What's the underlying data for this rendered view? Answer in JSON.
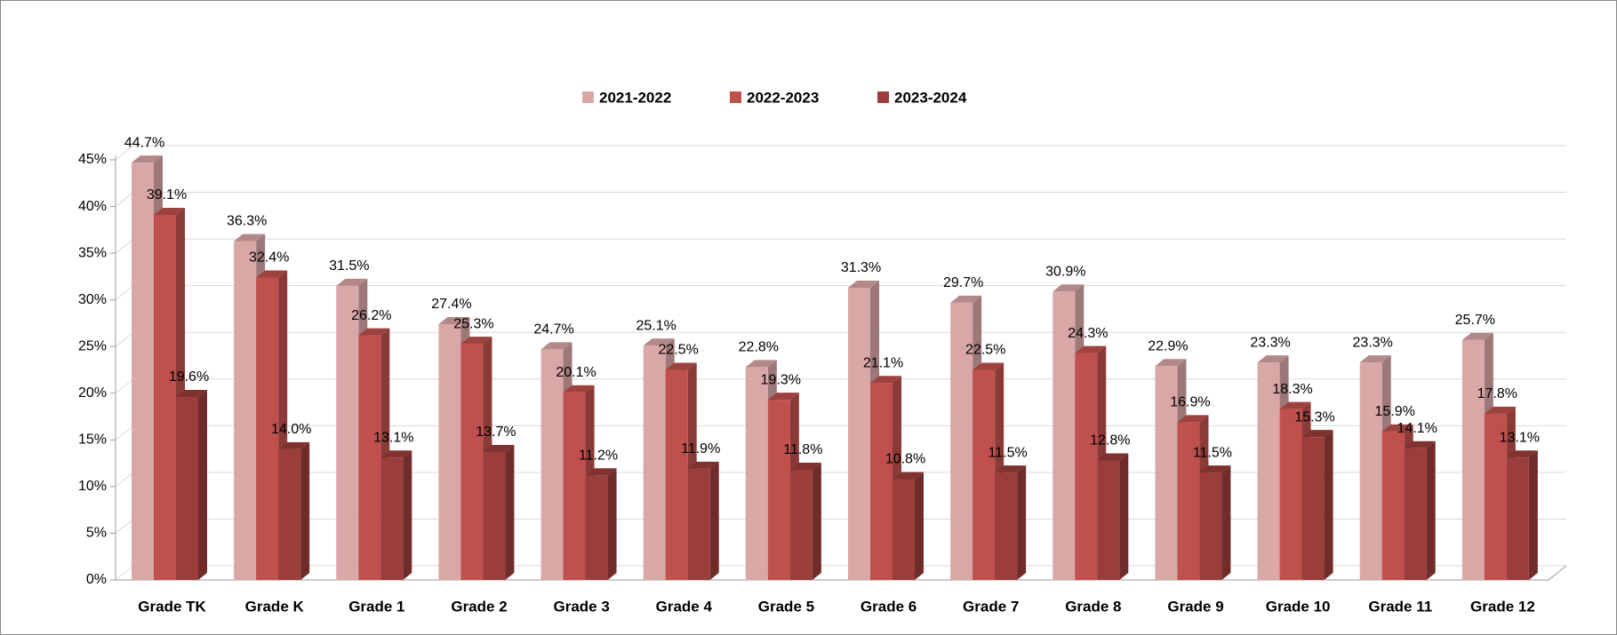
{
  "chart_data": {
    "type": "bar",
    "categories": [
      "Grade TK",
      "Grade K",
      "Grade 1",
      "Grade 2",
      "Grade 3",
      "Grade 4",
      "Grade 5",
      "Grade 6",
      "Grade 7",
      "Grade 8",
      "Grade 9",
      "Grade 10",
      "Grade 11",
      "Grade 12"
    ],
    "series": [
      {
        "name": "2021-2022",
        "color": "#d9a7a6",
        "values": [
          44.7,
          36.3,
          31.5,
          27.4,
          24.7,
          25.1,
          22.8,
          31.3,
          29.7,
          30.9,
          22.9,
          23.3,
          23.3,
          25.7
        ],
        "value_labels": [
          "44.7%",
          "36.3%",
          "31.5%",
          "27.4%",
          "24.7%",
          "25.1%",
          "22.8%",
          "31.3%",
          "29.7%",
          "30.9%",
          "22.9%",
          "23.3%",
          "23.3%",
          "25.7%"
        ]
      },
      {
        "name": "2022-2023",
        "color": "#c0504d",
        "values": [
          39.1,
          32.4,
          26.2,
          25.3,
          20.1,
          22.5,
          19.3,
          21.1,
          22.5,
          24.3,
          16.9,
          18.3,
          15.9,
          17.8
        ],
        "value_labels": [
          "39.1%",
          "32.4%",
          "26.2%",
          "25.3%",
          "20.1%",
          "22.5%",
          "19.3%",
          "21.1%",
          "22.5%",
          "24.3%",
          "16.9%",
          "18.3%",
          "15.9%",
          "17.8%"
        ]
      },
      {
        "name": "2023-2024",
        "color": "#9b3d3b",
        "values": [
          19.6,
          14.0,
          13.1,
          13.7,
          11.2,
          11.9,
          11.8,
          10.8,
          11.5,
          12.8,
          11.5,
          15.3,
          14.1,
          13.1
        ],
        "value_labels": [
          "19.6%",
          "14.0%",
          "13.1%",
          "13.7%",
          "11.2%",
          "11.9%",
          "11.8%",
          "10.8%",
          "11.5%",
          "12.8%",
          "11.5%",
          "15.3%",
          "14.1%",
          "13.1%"
        ]
      }
    ],
    "ylim": [
      0,
      45
    ],
    "yticks": [
      {
        "value": 0,
        "label": "0%"
      },
      {
        "value": 5,
        "label": "5%"
      },
      {
        "value": 10,
        "label": "10%"
      },
      {
        "value": 15,
        "label": "15%"
      },
      {
        "value": 20,
        "label": "20%"
      },
      {
        "value": 25,
        "label": "25%"
      },
      {
        "value": 30,
        "label": "30%"
      },
      {
        "value": 35,
        "label": "35%"
      },
      {
        "value": 40,
        "label": "40%"
      },
      {
        "value": 45,
        "label": "45%"
      }
    ],
    "grid": true,
    "legend": "top"
  }
}
